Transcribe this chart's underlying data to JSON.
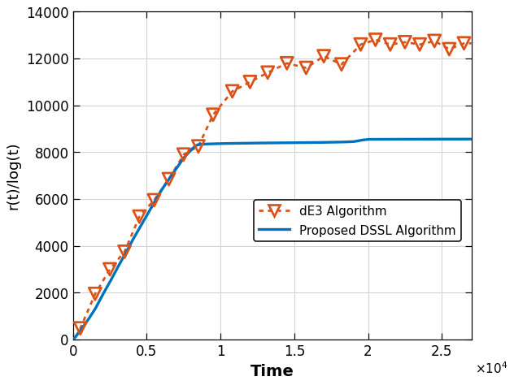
{
  "title": "",
  "xlabel": "Time",
  "ylabel": "r(t)/log(t)",
  "xlim": [
    0,
    27000
  ],
  "ylim": [
    0,
    14000
  ],
  "xticks": [
    0,
    5000,
    10000,
    15000,
    20000,
    25000
  ],
  "xtick_labels": [
    "0",
    "0.5",
    "1",
    "1.5",
    "2",
    "2.5"
  ],
  "yticks": [
    0,
    2000,
    4000,
    6000,
    8000,
    10000,
    12000,
    14000
  ],
  "dssl_color": "#0072BD",
  "de3_color": "#D95319",
  "legend_labels": [
    "dE3 Algorithm",
    "Proposed DSSL Algorithm"
  ],
  "dssl_knots_x": [
    0,
    100,
    500,
    1000,
    1500,
    2000,
    2500,
    3000,
    3500,
    4000,
    4500,
    5000,
    5500,
    6000,
    6500,
    7000,
    7500,
    8000,
    8300,
    8500,
    9000,
    10000,
    12000,
    14000,
    16000,
    18000,
    19000,
    19600,
    20000,
    22000,
    24000,
    26000,
    27000
  ],
  "dssl_knots_y": [
    0,
    60,
    380,
    820,
    1300,
    1900,
    2450,
    3050,
    3600,
    4200,
    4750,
    5300,
    5850,
    6380,
    6850,
    7300,
    7750,
    8100,
    8270,
    8330,
    8350,
    8370,
    8390,
    8400,
    8410,
    8430,
    8450,
    8520,
    8550,
    8555,
    8558,
    8560,
    8560
  ],
  "de3_marker_x": [
    500,
    1500,
    2500,
    3500,
    4500,
    5500,
    6500,
    7500,
    8500,
    9500,
    10800,
    12000,
    13200,
    14500,
    15800,
    17000,
    18200,
    19500,
    20500,
    21500,
    22500,
    23500,
    24500,
    25500,
    26500
  ],
  "de3_marker_y": [
    480,
    1950,
    3000,
    3750,
    5250,
    5950,
    6850,
    7900,
    8250,
    9600,
    10600,
    11000,
    11400,
    11800,
    11600,
    12100,
    11750,
    12600,
    12800,
    12600,
    12700,
    12600,
    12750,
    12400,
    12650
  ],
  "de3_line_start_x": 200,
  "de3_line_start_y": 120
}
